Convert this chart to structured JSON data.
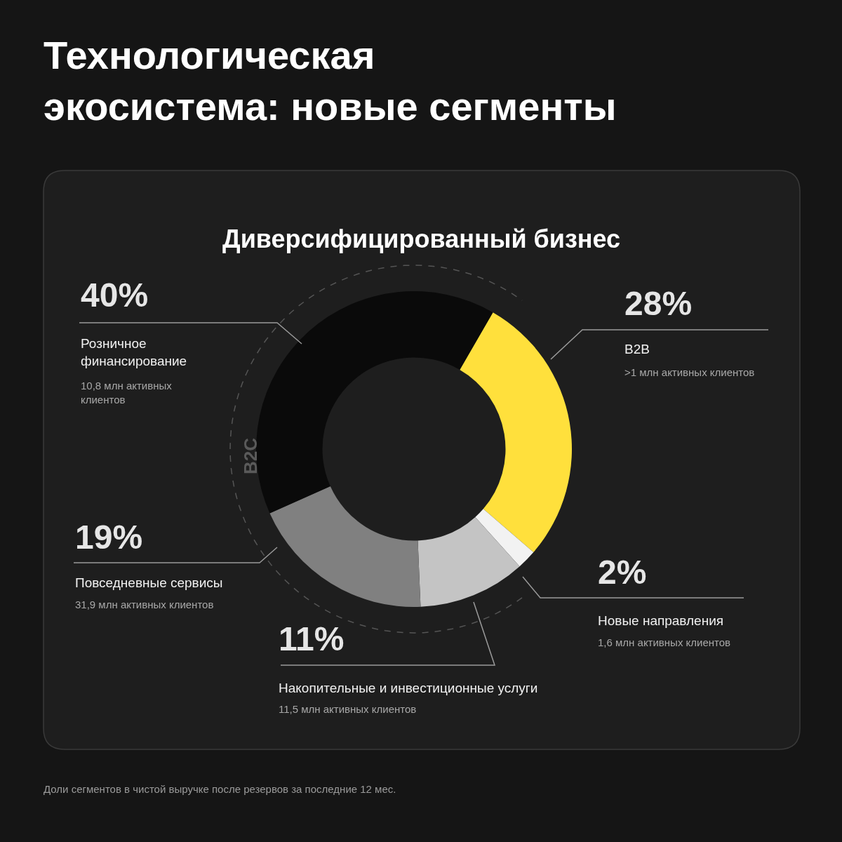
{
  "chart_data": {
    "type": "donut",
    "title": "Технологическая\nэкосистема: новые сегменты",
    "subtitle": "Диверсифицированный бизнес",
    "categories": [
      "B2B",
      "Новые направления",
      "Накопительные и инвестиционные услуги",
      "Повседневные сервисы",
      "Розничное\nфинансирование"
    ],
    "values": [
      28,
      2,
      11,
      19,
      40
    ],
    "value_labels": [
      "28%",
      "2%",
      "11%",
      "19%",
      "40%"
    ],
    "colors": [
      "#ffe03c",
      "#f2f2f2",
      "#c4c4c4",
      "#808080",
      "#0a0a0a"
    ],
    "annotations": [
      ">1 млн активных клиентов",
      "1,6 млн активных клиентов",
      "11,5 млн активных клиентов",
      "31,9 млн активных клиентов",
      "10,8 млн активных\nклиентов",
      "B2C",
      "Доли сегментов в чистой выручке после резервов за последние 12 мес."
    ]
  }
}
